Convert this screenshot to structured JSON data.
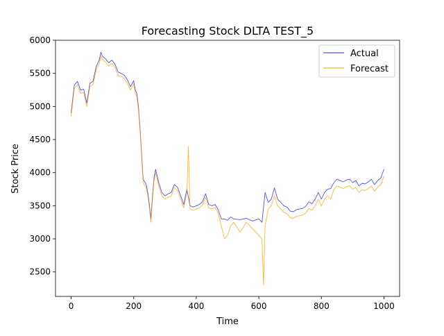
{
  "chart_data": {
    "type": "line",
    "title": "Forecasting Stock DLTA TEST_5",
    "xlabel": "Time",
    "ylabel": "Stock Price",
    "xlim": [
      -50,
      1050
    ],
    "ylim": [
      2130,
      6000
    ],
    "x_ticks": [
      0,
      200,
      400,
      600,
      800,
      1000
    ],
    "y_ticks": [
      2500,
      3000,
      3500,
      4000,
      4500,
      5000,
      5500,
      6000
    ],
    "grid": false,
    "legend_position": "top-right",
    "series": [
      {
        "name": "Actual",
        "color": "#3333ee",
        "x": [
          0,
          10,
          20,
          30,
          40,
          50,
          60,
          70,
          80,
          90,
          95,
          100,
          110,
          120,
          130,
          140,
          150,
          160,
          170,
          180,
          190,
          200,
          205,
          210,
          215,
          220,
          230,
          240,
          245,
          250,
          255,
          260,
          265,
          270,
          280,
          290,
          300,
          310,
          320,
          330,
          340,
          350,
          360,
          370,
          380,
          390,
          400,
          410,
          420,
          430,
          440,
          450,
          460,
          470,
          480,
          490,
          500,
          510,
          520,
          540,
          560,
          580,
          600,
          610,
          620,
          630,
          640,
          650,
          660,
          670,
          680,
          690,
          700,
          710,
          720,
          730,
          740,
          750,
          760,
          770,
          780,
          790,
          800,
          810,
          820,
          830,
          840,
          850,
          860,
          870,
          880,
          890,
          900,
          910,
          920,
          930,
          940,
          950,
          960,
          970,
          980,
          990,
          1000
        ],
        "y": [
          4900,
          5320,
          5380,
          5250,
          5260,
          5050,
          5350,
          5380,
          5600,
          5700,
          5820,
          5760,
          5720,
          5660,
          5700,
          5640,
          5520,
          5500,
          5470,
          5400,
          5300,
          5390,
          5250,
          5200,
          5000,
          4700,
          3900,
          3820,
          3700,
          3520,
          3300,
          3640,
          3920,
          4050,
          3850,
          3700,
          3650,
          3680,
          3700,
          3820,
          3780,
          3650,
          3520,
          3750,
          3500,
          3480,
          3500,
          3520,
          3560,
          3680,
          3520,
          3500,
          3520,
          3440,
          3300,
          3300,
          3280,
          3330,
          3300,
          3290,
          3310,
          3270,
          3300,
          3250,
          3700,
          3550,
          3600,
          3770,
          3600,
          3550,
          3500,
          3480,
          3420,
          3410,
          3440,
          3450,
          3460,
          3490,
          3560,
          3530,
          3600,
          3700,
          3600,
          3700,
          3750,
          3760,
          3850,
          3900,
          3880,
          3860,
          3890,
          3900,
          3850,
          3880,
          3800,
          3840,
          3830,
          3860,
          3900,
          3820,
          3880,
          3920,
          4050
        ]
      },
      {
        "name": "Forecast",
        "color": "#ffa500",
        "x": [
          0,
          10,
          20,
          30,
          40,
          50,
          60,
          70,
          80,
          90,
          95,
          100,
          110,
          120,
          130,
          140,
          150,
          160,
          170,
          180,
          190,
          200,
          205,
          210,
          215,
          220,
          230,
          240,
          245,
          250,
          255,
          260,
          265,
          270,
          280,
          290,
          300,
          310,
          320,
          330,
          340,
          350,
          360,
          370,
          375,
          380,
          390,
          400,
          410,
          420,
          430,
          440,
          450,
          460,
          470,
          480,
          490,
          500,
          510,
          520,
          540,
          560,
          580,
          600,
          610,
          615,
          620,
          630,
          640,
          650,
          660,
          670,
          680,
          690,
          700,
          710,
          720,
          730,
          740,
          750,
          760,
          770,
          780,
          790,
          800,
          810,
          820,
          830,
          840,
          850,
          860,
          870,
          880,
          890,
          900,
          910,
          920,
          930,
          940,
          950,
          960,
          970,
          980,
          990,
          1000
        ],
        "y": [
          4850,
          5270,
          5330,
          5200,
          5210,
          5000,
          5300,
          5330,
          5550,
          5650,
          5760,
          5710,
          5670,
          5610,
          5650,
          5590,
          5470,
          5450,
          5420,
          5350,
          5250,
          5340,
          5200,
          5150,
          4950,
          4650,
          3850,
          3770,
          3650,
          3470,
          3250,
          3590,
          3870,
          4000,
          3800,
          3650,
          3600,
          3630,
          3650,
          3770,
          3730,
          3600,
          3470,
          3700,
          4400,
          3450,
          3430,
          3450,
          3470,
          3510,
          3630,
          3470,
          3450,
          3470,
          3390,
          3200,
          3000,
          3050,
          3200,
          3250,
          3100,
          3250,
          3150,
          3050,
          3000,
          2300,
          3200,
          3450,
          3500,
          3650,
          3500,
          3450,
          3400,
          3380,
          3320,
          3310,
          3340,
          3350,
          3360,
          3390,
          3460,
          3430,
          3500,
          3600,
          3500,
          3600,
          3650,
          3600,
          3750,
          3800,
          3780,
          3760,
          3790,
          3800,
          3750,
          3780,
          3700,
          3740,
          3730,
          3760,
          3800,
          3720,
          3780,
          3820,
          3950
        ]
      }
    ]
  }
}
